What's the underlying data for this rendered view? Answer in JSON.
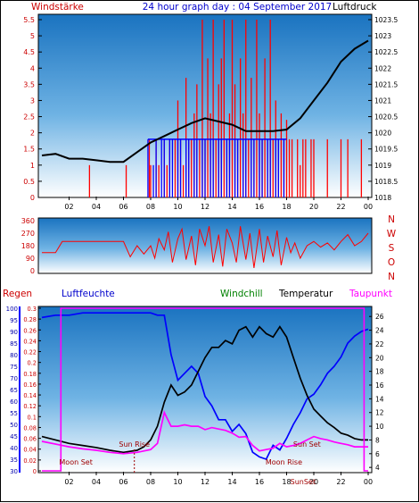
{
  "header": {
    "left_label": "Windstärke",
    "title": "24 hour graph day : 04 September 2017",
    "right_label": "Luftdruck"
  },
  "colors": {
    "panel_top": "#1a73c0",
    "panel_bottom": "#ffffff",
    "red": "#ff0000",
    "blue": "#0000ff",
    "black": "#000000",
    "magenta": "#ff00ff",
    "green": "#008000",
    "axis_red": "#cc0000",
    "axis_blue": "#0000aa",
    "dark_red": "#a00000"
  },
  "chart_data": [
    {
      "type": "line",
      "title": "24 hour graph day : 04 September 2017",
      "ylabel": "Windstärke",
      "y2label": "Luftdruck",
      "x_ticks": [
        "02",
        "04",
        "06",
        "08",
        "10",
        "12",
        "14",
        "16",
        "18",
        "20",
        "22",
        "00"
      ],
      "ylim": [
        0,
        5.5
      ],
      "y_ticks": [
        "0",
        "0.5",
        "1",
        "1.5",
        "2",
        "2.5",
        "3",
        "3.5",
        "4",
        "4.5",
        "5",
        "5.5"
      ],
      "y2lim": [
        1018,
        1023.5
      ],
      "y2_ticks": [
        "1018",
        "1018.5",
        "1019",
        "1019.5",
        "1020",
        "1020.5",
        "1021",
        "1021.5",
        "1022",
        "1022.5",
        "1023",
        "1023.5"
      ],
      "series": [
        {
          "color": "red",
          "axis": "left",
          "hours": [
            0,
            1,
            1.5,
            2,
            3,
            3.5,
            4,
            5,
            6,
            6.2,
            7,
            7.5,
            7.7,
            7.9,
            8,
            8.2,
            8.4,
            8.6,
            8.8,
            9,
            9.2,
            9.4,
            9.6,
            9.8,
            10,
            10.2,
            10.4,
            10.6,
            10.8,
            11,
            11.2,
            11.4,
            11.6,
            11.8,
            12,
            12.2,
            12.4,
            12.6,
            12.8,
            13,
            13.2,
            13.4,
            13.6,
            13.8,
            14,
            14.2,
            14.4,
            14.6,
            14.8,
            15,
            15.2,
            15.4,
            15.6,
            15.8,
            16,
            16.2,
            16.4,
            16.6,
            16.8,
            17,
            17.2,
            17.4,
            17.6,
            17.8,
            18,
            18.2,
            18.4,
            18.6,
            18.8,
            19,
            19.2,
            19.4,
            19.6,
            19.8,
            20,
            20.5,
            21,
            21.5,
            22,
            22.5,
            23,
            23.5,
            24
          ],
          "values": [
            0,
            0,
            0,
            0,
            0,
            1.0,
            0,
            0,
            0,
            1.0,
            0,
            0,
            0,
            1.8,
            1.0,
            0,
            1.8,
            1.0,
            0,
            1.8,
            1.0,
            1.8,
            0,
            1.8,
            3.0,
            1.8,
            1.0,
            3.7,
            1.8,
            1.8,
            2.6,
            3.5,
            1.8,
            5.5,
            1.8,
            4.3,
            2.6,
            5.5,
            1.8,
            3.5,
            4.3,
            5.5,
            1.8,
            2.6,
            5.5,
            3.5,
            1.8,
            4.3,
            2.6,
            5.5,
            1.8,
            3.7,
            1.8,
            5.5,
            2.6,
            1.8,
            4.3,
            1.8,
            5.5,
            1.8,
            3.0,
            1.8,
            2.6,
            1.8,
            2.4,
            1.8,
            1.8,
            0,
            1.8,
            1.0,
            1.8,
            1.8,
            0,
            1.8,
            1.8,
            0,
            1.8,
            0,
            1.8,
            1.8,
            0,
            1.8,
            0
          ]
        },
        {
          "color": "blue",
          "axis": "left",
          "hours": [
            7.8,
            8,
            8.2,
            8.4,
            8.6,
            8.8,
            9,
            9.2,
            9.4,
            9.6,
            9.8,
            10,
            10.2,
            10.4,
            10.6,
            10.8,
            11,
            11.2,
            11.4,
            11.6,
            11.8,
            12,
            12.2,
            12.4,
            12.6,
            12.8,
            13,
            13.2,
            13.4,
            13.6,
            13.8,
            14,
            14.2,
            14.4,
            14.6,
            14.8,
            15,
            15.2,
            15.4,
            15.6,
            15.8,
            16,
            16.2,
            16.4,
            16.6,
            16.8,
            17,
            17.2,
            17.4,
            17.6,
            17.8,
            18
          ],
          "values": [
            1.8,
            0,
            1.0,
            1.8,
            0,
            1.8,
            1.8,
            0,
            1.8,
            1.8,
            0,
            1.8,
            1.8,
            0,
            1.8,
            1.8,
            0,
            1.8,
            1.8,
            0,
            1.8,
            1.8,
            0,
            1.8,
            1.8,
            0,
            1.8,
            1.8,
            0,
            1.8,
            1.8,
            0,
            1.8,
            1.8,
            0,
            1.8,
            1.8,
            0,
            1.8,
            1.8,
            0,
            1.8,
            1.8,
            0,
            1.8,
            1.8,
            0,
            1.8,
            1.8,
            0,
            1.8,
            0
          ]
        },
        {
          "color": "black",
          "axis": "right",
          "hours": [
            0,
            1,
            2,
            3,
            4,
            5,
            6,
            7,
            8,
            9,
            10,
            11,
            12,
            13,
            14,
            15,
            16,
            17,
            18,
            19,
            20,
            21,
            22,
            23,
            24
          ],
          "values": [
            1019.3,
            1019.35,
            1019.2,
            1019.2,
            1019.15,
            1019.1,
            1019.1,
            1019.4,
            1019.7,
            1019.9,
            1020.1,
            1020.3,
            1020.45,
            1020.35,
            1020.25,
            1020.05,
            1020.05,
            1020.05,
            1020.1,
            1020.45,
            1021.0,
            1021.55,
            1022.2,
            1022.6,
            1022.85
          ]
        }
      ]
    },
    {
      "type": "line",
      "y_ticks": [
        "0",
        "90",
        "180",
        "270",
        "360"
      ],
      "ylim": [
        0,
        360
      ],
      "compass": [
        "N",
        "W",
        "S",
        "O",
        "N"
      ],
      "series": [
        {
          "color": "red",
          "hours": [
            0,
            1,
            1.5,
            2,
            3,
            4,
            5,
            6,
            6.5,
            7,
            7.5,
            8,
            8.3,
            8.6,
            9,
            9.3,
            9.6,
            10,
            10.3,
            10.6,
            11,
            11.3,
            11.6,
            12,
            12.3,
            12.6,
            13,
            13.3,
            13.6,
            14,
            14.3,
            14.6,
            15,
            15.3,
            15.6,
            16,
            16.3,
            16.6,
            17,
            17.3,
            17.6,
            18,
            18.3,
            18.6,
            19,
            19.5,
            20,
            20.5,
            21,
            21.5,
            22,
            22.5,
            23,
            23.5,
            24
          ],
          "values": [
            130,
            130,
            210,
            210,
            210,
            210,
            210,
            210,
            100,
            180,
            120,
            180,
            90,
            230,
            150,
            280,
            60,
            230,
            300,
            80,
            250,
            40,
            300,
            180,
            320,
            60,
            260,
            30,
            300,
            200,
            60,
            320,
            80,
            270,
            20,
            300,
            60,
            250,
            100,
            290,
            40,
            240,
            130,
            200,
            90,
            180,
            210,
            170,
            200,
            150,
            210,
            260,
            180,
            210,
            270
          ]
        }
      ]
    },
    {
      "type": "line",
      "labels": {
        "regen": "Regen",
        "luftfeuchte": "Luftfeuchte",
        "windchill": "Windchill",
        "temperatur": "Temperatur",
        "taupunkt": "Taupunkt"
      },
      "regen_ticks": [
        "0",
        "0.02",
        "0.04",
        "0.06",
        "0.08",
        "0.1",
        "0.12",
        "0.14",
        "0.16",
        "0.18",
        "0.2",
        "0.22",
        "0.24",
        "0.26",
        "0.28",
        "0.3"
      ],
      "luftfeuchte_ticks": [
        "30",
        "35",
        "40",
        "45",
        "50",
        "55",
        "60",
        "65",
        "70",
        "75",
        "80",
        "85",
        "90",
        "95",
        "100"
      ],
      "luftfeuchte_lim": [
        30,
        100
      ],
      "temp_ticks": [
        "4",
        "6",
        "8",
        "10",
        "12",
        "14",
        "16",
        "18",
        "20",
        "22",
        "24",
        "26"
      ],
      "temp_lim": [
        3.5,
        27.2
      ],
      "annotations": [
        {
          "text": "Sun Rise",
          "hour": 6.8
        },
        {
          "text": "Moon Set",
          "hour": 2.5
        },
        {
          "text": "Sun Set",
          "hour": 19.5
        },
        {
          "text": "Moon Rise",
          "hour": 17.8
        },
        {
          "text": "SunSet",
          "hour": 19.2
        }
      ],
      "series": [
        {
          "color": "blue",
          "label": "Luftfeuchte",
          "hours": [
            0,
            1,
            2,
            3,
            4,
            5,
            6,
            7,
            8,
            8.5,
            9,
            9.5,
            10,
            10.5,
            11,
            11.5,
            12,
            12.5,
            13,
            13.5,
            14,
            14.5,
            15,
            15.5,
            16,
            16.5,
            17,
            17.5,
            18,
            18.5,
            19,
            19.5,
            20,
            20.5,
            21,
            21.5,
            22,
            22.5,
            23,
            23.5,
            24
          ],
          "values": [
            96,
            97,
            97,
            98,
            98,
            98,
            98,
            98,
            98,
            97,
            97,
            80,
            69,
            72,
            75,
            72,
            62,
            58,
            52,
            52,
            47,
            50,
            46,
            38,
            36,
            35,
            41,
            39,
            44,
            50,
            55,
            61,
            63,
            67,
            72,
            75,
            79,
            85,
            88,
            90,
            91
          ]
        },
        {
          "color": "black",
          "label": "Temperatur",
          "hours": [
            0,
            1,
            2,
            3,
            4,
            5,
            6,
            7,
            7.5,
            8,
            8.5,
            9,
            9.5,
            10,
            10.5,
            11,
            11.5,
            12,
            12.5,
            13,
            13.5,
            14,
            14.5,
            15,
            15.5,
            16,
            16.5,
            17,
            17.5,
            18,
            18.5,
            19,
            19.5,
            20,
            20.5,
            21,
            21.5,
            22,
            22.5,
            23,
            23.5,
            24
          ],
          "values": [
            8.5,
            8.0,
            7.5,
            7.2,
            6.9,
            6.5,
            6.2,
            6.5,
            7.0,
            8.0,
            10.0,
            13.5,
            16.0,
            14.5,
            15.0,
            16.0,
            18.0,
            20.0,
            21.5,
            21.5,
            22.5,
            22.0,
            24.0,
            24.5,
            23.0,
            24.5,
            23.5,
            23.0,
            24.5,
            23.0,
            20.0,
            17.0,
            14.5,
            12.5,
            11.5,
            10.5,
            9.8,
            9.0,
            8.7,
            8.2,
            8.0,
            8.0
          ]
        },
        {
          "color": "magenta",
          "label": "Taupunkt",
          "hours": [
            0,
            1,
            2,
            3,
            4,
            5,
            6,
            7,
            8,
            8.5,
            9,
            9.5,
            10,
            10.5,
            11,
            11.5,
            12,
            12.5,
            13,
            13.5,
            14,
            14.5,
            15,
            15.5,
            16,
            16.5,
            17,
            17.5,
            18,
            18.5,
            19,
            19.5,
            20,
            20.5,
            21,
            21.5,
            22,
            22.5,
            23,
            23.5,
            24
          ],
          "values": [
            7.8,
            7.4,
            7.0,
            6.7,
            6.5,
            6.2,
            6.0,
            6.2,
            6.6,
            7.5,
            12.0,
            10.0,
            10.0,
            10.2,
            10.0,
            10.0,
            9.5,
            9.8,
            9.6,
            9.4,
            9.0,
            8.4,
            8.5,
            7.2,
            6.4,
            6.6,
            6.8,
            7.5,
            7.0,
            7.2,
            7.5,
            8.0,
            8.5,
            8.2,
            8.0,
            7.7,
            7.5,
            7.3,
            7.0,
            7.0,
            7.0
          ]
        },
        {
          "color": "magenta",
          "label": "Regen",
          "hours": [
            0,
            1.4,
            1.4,
            23.7,
            23.7,
            24
          ],
          "values": [
            0,
            0,
            0.3,
            0.3,
            0,
            0
          ]
        }
      ]
    }
  ]
}
